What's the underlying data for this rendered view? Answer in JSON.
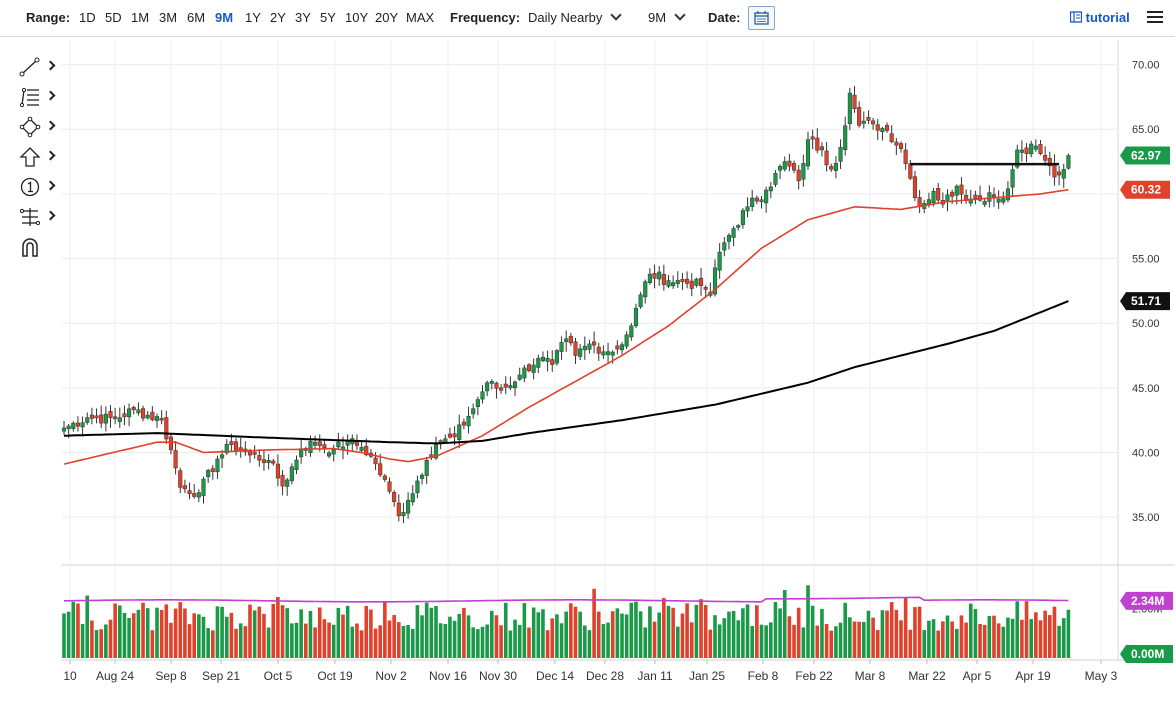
{
  "toolbar": {
    "range_label": "Range:",
    "ranges": [
      "1D",
      "5D",
      "1M",
      "3M",
      "6M",
      "9M",
      "1Y",
      "2Y",
      "3Y",
      "5Y",
      "10Y",
      "20Y",
      "MAX"
    ],
    "active_range": "9M",
    "frequency_label": "Frequency:",
    "frequency_value": "Daily Nearby",
    "period_value": "9M",
    "date_label": "Date:",
    "tutorial_label": "tutorial"
  },
  "left_tools": [
    "trendline-icon",
    "fib-retracement-icon",
    "shapes-icon",
    "arrow-icon",
    "annotation-icon",
    "measure-icon",
    "magnet-icon"
  ],
  "chart_data": {
    "type": "candlestick",
    "price_axis": {
      "ticks": [
        "70.00",
        "65.00",
        "60.00",
        "55.00",
        "50.00",
        "45.00",
        "40.00",
        "35.00"
      ],
      "range": [
        31,
        72
      ]
    },
    "x_axis": {
      "labels": [
        "10",
        "Aug 24",
        "Sep 8",
        "Sep 21",
        "Oct 5",
        "Oct 19",
        "Nov 2",
        "Nov 16",
        "Nov 30",
        "Dec 14",
        "Dec 28",
        "Jan 11",
        "Jan 25",
        "Feb 8",
        "Feb 22",
        "Mar 8",
        "Mar 22",
        "Apr 5",
        "Apr 19",
        "May 3"
      ]
    },
    "price_badges": {
      "last": "62.97",
      "ma_short": "60.32",
      "ma_long": "51.71"
    },
    "volume_badges": {
      "avg": "2.34M",
      "zero": "0.00M"
    },
    "volume_axis_label": "2.00M",
    "colors": {
      "up": "#1a9a48",
      "down": "#e0412b",
      "ma_short": "#e0412b",
      "ma_long": "#000000",
      "volume_avg": "#c040d0",
      "badge_green": "#1a9a48",
      "badge_red": "#e0412b",
      "badge_black": "#111111",
      "badge_purple": "#c040d0"
    },
    "close_anchors": [
      [
        0,
        41.9
      ],
      [
        5,
        42.7
      ],
      [
        11,
        42.6
      ],
      [
        15,
        43.3
      ],
      [
        21,
        42.5
      ],
      [
        23,
        40.2
      ],
      [
        25,
        37.3
      ],
      [
        29,
        36.9
      ],
      [
        33,
        39.5
      ],
      [
        36,
        40.6
      ],
      [
        40,
        39.8
      ],
      [
        44,
        39.4
      ],
      [
        47,
        37.4
      ],
      [
        51,
        40.3
      ],
      [
        54,
        40.8
      ],
      [
        58,
        40.2
      ],
      [
        61,
        40.9
      ],
      [
        64,
        40.4
      ],
      [
        66,
        39.7
      ],
      [
        70,
        37.0
      ],
      [
        72,
        35.1
      ],
      [
        74,
        36.3
      ],
      [
        78,
        39.4
      ],
      [
        80,
        40.6
      ],
      [
        84,
        41.2
      ],
      [
        87,
        42.8
      ],
      [
        91,
        45.4
      ],
      [
        94,
        44.8
      ],
      [
        98,
        46.0
      ],
      [
        102,
        47.3
      ],
      [
        105,
        46.8
      ],
      [
        108,
        48.8
      ],
      [
        110,
        47.5
      ],
      [
        113,
        48.4
      ],
      [
        117,
        47.8
      ],
      [
        119,
        48.0
      ],
      [
        122,
        49.8
      ],
      [
        124,
        52.2
      ],
      [
        126,
        53.8
      ],
      [
        130,
        53.3
      ],
      [
        133,
        53.2
      ],
      [
        137,
        52.9
      ],
      [
        139,
        52.4
      ],
      [
        141,
        55.5
      ],
      [
        143,
        56.8
      ],
      [
        147,
        59.0
      ],
      [
        151,
        60.3
      ],
      [
        155,
        62.5
      ],
      [
        158,
        61.0
      ],
      [
        160,
        64.2
      ],
      [
        163,
        63.4
      ],
      [
        165,
        61.9
      ],
      [
        167,
        63.6
      ],
      [
        169,
        67.8
      ],
      [
        171,
        65.3
      ],
      [
        174,
        65.4
      ],
      [
        177,
        64.9
      ],
      [
        180,
        63.5
      ],
      [
        182,
        61.2
      ],
      [
        184,
        59.0
      ],
      [
        187,
        60.2
      ],
      [
        189,
        59.2
      ],
      [
        192,
        60.6
      ],
      [
        195,
        59.6
      ],
      [
        197,
        59.5
      ],
      [
        199,
        60.1
      ],
      [
        201,
        59.6
      ],
      [
        203,
        60.4
      ],
      [
        205,
        63.4
      ],
      [
        209,
        63.7
      ],
      [
        211,
        62.6
      ],
      [
        213,
        61.3
      ],
      [
        215,
        61.9
      ],
      [
        216,
        62.97
      ]
    ],
    "ma_short_anchors": [
      [
        0,
        39.1
      ],
      [
        20,
        40.8
      ],
      [
        24,
        40.8
      ],
      [
        30,
        40.0
      ],
      [
        44,
        40.2
      ],
      [
        58,
        40.3
      ],
      [
        64,
        40.0
      ],
      [
        70,
        39.5
      ],
      [
        74,
        39.3
      ],
      [
        80,
        39.7
      ],
      [
        90,
        41.3
      ],
      [
        100,
        43.5
      ],
      [
        110,
        45.5
      ],
      [
        120,
        47.5
      ],
      [
        130,
        49.8
      ],
      [
        140,
        52.6
      ],
      [
        150,
        55.8
      ],
      [
        160,
        58.0
      ],
      [
        170,
        59.0
      ],
      [
        180,
        58.8
      ],
      [
        190,
        59.4
      ],
      [
        200,
        59.7
      ],
      [
        210,
        60.0
      ],
      [
        216,
        60.32
      ]
    ],
    "ma_long_anchors": [
      [
        0,
        41.3
      ],
      [
        20,
        41.5
      ],
      [
        40,
        41.2
      ],
      [
        70,
        40.8
      ],
      [
        80,
        40.7
      ],
      [
        90,
        40.9
      ],
      [
        100,
        41.5
      ],
      [
        120,
        42.5
      ],
      [
        140,
        43.7
      ],
      [
        160,
        45.4
      ],
      [
        170,
        46.6
      ],
      [
        180,
        47.5
      ],
      [
        190,
        48.4
      ],
      [
        200,
        49.4
      ],
      [
        216,
        51.71
      ]
    ],
    "resistance_line": {
      "from_index": 182,
      "to_index": 214,
      "value": 62.3
    },
    "volume_avg_level": 2.3
  }
}
